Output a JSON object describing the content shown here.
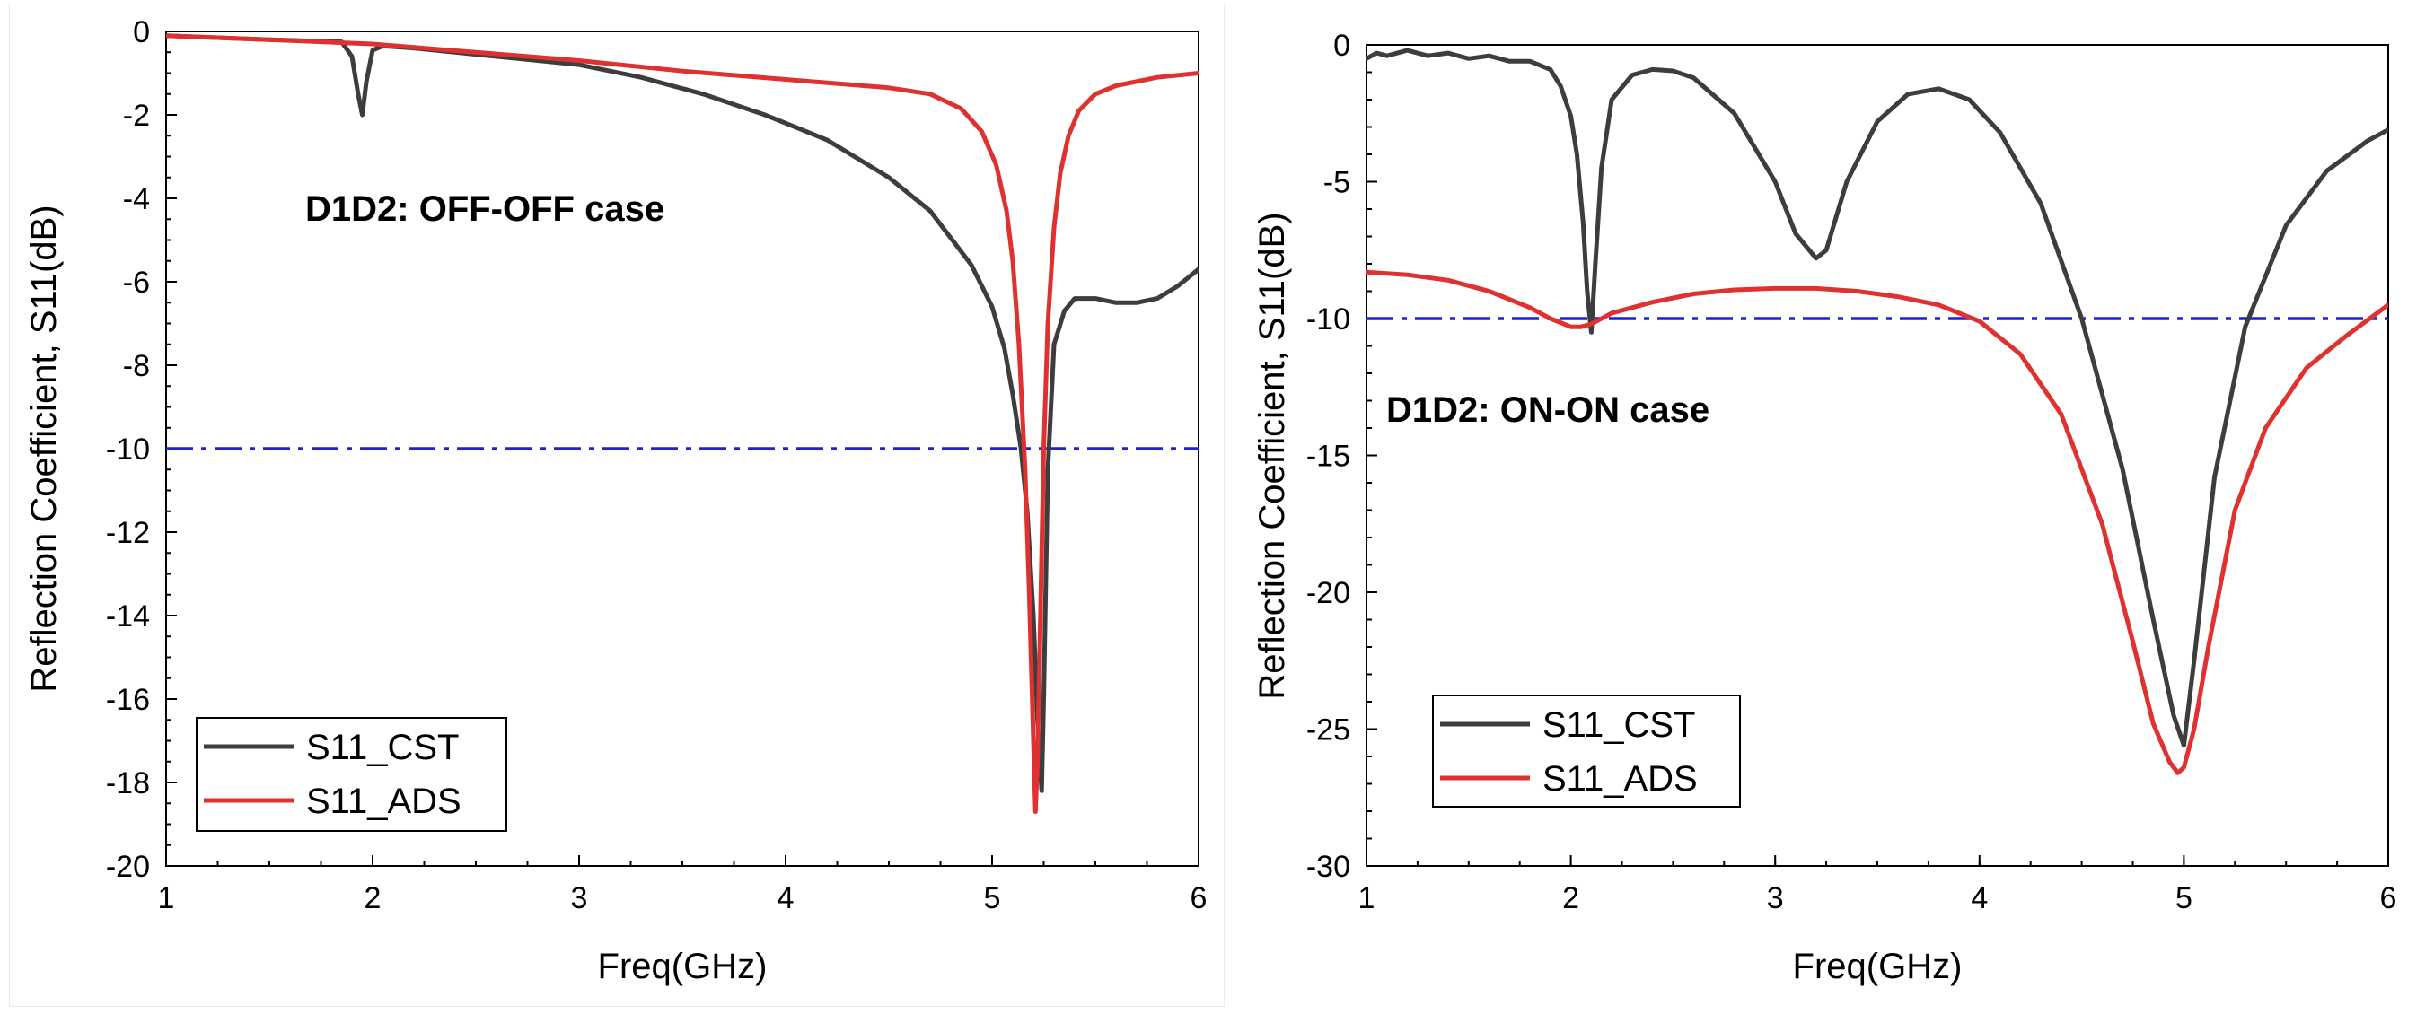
{
  "chart_data": [
    {
      "type": "line",
      "title": "",
      "annotation": "D1D2: OFF-OFF case",
      "xlabel": "Freq(GHz)",
      "ylabel": "Reflection Coefficient, S11(dB)",
      "xlim": [
        1,
        6
      ],
      "ylim": [
        -20,
        0
      ],
      "xticks": [
        1,
        2,
        3,
        4,
        5,
        6
      ],
      "yticks": [
        0,
        -2,
        -4,
        -6,
        -8,
        -10,
        -12,
        -14,
        -16,
        -18,
        -20
      ],
      "xtick_labels": [
        "1",
        "2",
        "3",
        "4",
        "5",
        "6"
      ],
      "ytick_labels": [
        "0",
        "-2",
        "-4",
        "-6",
        "-8",
        "-10",
        "-12",
        "-14",
        "-16",
        "-18",
        "-20"
      ],
      "legend_position": "bottom-left",
      "reference_line": {
        "y": -10,
        "style": "dash-dot",
        "color": "#1f1fd6"
      },
      "series": [
        {
          "name": "S11_CST",
          "color": "#3d3d3d",
          "x": [
            1,
            1.5,
            1.85,
            1.9,
            1.93,
            1.95,
            1.97,
            2.0,
            2.05,
            2.2,
            2.5,
            2.8,
            3.0,
            3.3,
            3.6,
            3.9,
            4.2,
            4.5,
            4.7,
            4.9,
            5.0,
            5.06,
            5.1,
            5.14,
            5.17,
            5.2,
            5.22,
            5.24,
            5.25,
            5.27,
            5.3,
            5.35,
            5.4,
            5.5,
            5.6,
            5.7,
            5.8,
            5.9,
            6.0
          ],
          "y": [
            -0.1,
            -0.2,
            -0.25,
            -0.6,
            -1.5,
            -2.0,
            -1.2,
            -0.45,
            -0.35,
            -0.4,
            -0.55,
            -0.7,
            -0.8,
            -1.1,
            -1.5,
            -2.0,
            -2.6,
            -3.5,
            -4.3,
            -5.6,
            -6.6,
            -7.6,
            -8.7,
            -10.0,
            -11.5,
            -14.0,
            -16.5,
            -18.2,
            -16.0,
            -10.5,
            -7.5,
            -6.7,
            -6.4,
            -6.4,
            -6.5,
            -6.5,
            -6.4,
            -6.1,
            -5.7
          ]
        },
        {
          "name": "S11_ADS",
          "color": "#e03131",
          "x": [
            1,
            1.5,
            2.0,
            2.5,
            3.0,
            3.5,
            4.0,
            4.5,
            4.7,
            4.85,
            4.95,
            5.02,
            5.07,
            5.1,
            5.13,
            5.16,
            5.18,
            5.2,
            5.21,
            5.22,
            5.23,
            5.25,
            5.27,
            5.3,
            5.33,
            5.37,
            5.42,
            5.5,
            5.6,
            5.8,
            6.0
          ],
          "y": [
            -0.1,
            -0.2,
            -0.3,
            -0.5,
            -0.7,
            -0.95,
            -1.15,
            -1.35,
            -1.5,
            -1.85,
            -2.4,
            -3.2,
            -4.3,
            -5.5,
            -7.5,
            -10.5,
            -13.5,
            -17.0,
            -18.7,
            -17.5,
            -15.0,
            -10.0,
            -7.0,
            -4.7,
            -3.4,
            -2.5,
            -1.9,
            -1.5,
            -1.3,
            -1.1,
            -1.0
          ]
        }
      ]
    },
    {
      "type": "line",
      "title": "",
      "annotation": "D1D2: ON-ON case",
      "xlabel": "Freq(GHz)",
      "ylabel": "Reflection Coefficient, S11(dB)",
      "xlim": [
        1,
        6
      ],
      "ylim": [
        -30,
        0
      ],
      "xticks": [
        1,
        2,
        3,
        4,
        5,
        6
      ],
      "yticks": [
        0,
        -5,
        -10,
        -15,
        -20,
        -25,
        -30
      ],
      "xtick_labels": [
        "1",
        "2",
        "3",
        "4",
        "5",
        "6"
      ],
      "ytick_labels": [
        "0",
        "-5",
        "-10",
        "-15",
        "-20",
        "-25",
        "-30"
      ],
      "legend_position": "bottom-left",
      "reference_line": {
        "y": -10,
        "style": "dash-dot",
        "color": "#1f1fd6"
      },
      "series": [
        {
          "name": "S11_CST",
          "color": "#3d3d3d",
          "x": [
            1,
            1.05,
            1.1,
            1.2,
            1.3,
            1.4,
            1.5,
            1.6,
            1.7,
            1.8,
            1.9,
            1.95,
            2.0,
            2.03,
            2.06,
            2.08,
            2.1,
            2.12,
            2.15,
            2.2,
            2.3,
            2.4,
            2.5,
            2.6,
            2.8,
            3.0,
            3.1,
            3.2,
            3.25,
            3.35,
            3.5,
            3.65,
            3.8,
            3.95,
            4.1,
            4.3,
            4.5,
            4.7,
            4.85,
            4.95,
            5.0,
            5.05,
            5.15,
            5.3,
            5.5,
            5.7,
            5.9,
            6.0
          ],
          "y": [
            -0.5,
            -0.3,
            -0.4,
            -0.2,
            -0.4,
            -0.3,
            -0.5,
            -0.4,
            -0.6,
            -0.6,
            -0.9,
            -1.5,
            -2.6,
            -4.0,
            -6.5,
            -9.0,
            -10.5,
            -8.0,
            -4.5,
            -2.0,
            -1.1,
            -0.9,
            -0.95,
            -1.2,
            -2.5,
            -5.0,
            -6.9,
            -7.8,
            -7.5,
            -5.0,
            -2.8,
            -1.8,
            -1.6,
            -2.0,
            -3.2,
            -5.8,
            -10.0,
            -15.5,
            -21.0,
            -24.5,
            -25.6,
            -22.5,
            -15.8,
            -10.3,
            -6.6,
            -4.6,
            -3.5,
            -3.1
          ]
        },
        {
          "name": "S11_ADS",
          "color": "#e03131",
          "x": [
            1,
            1.2,
            1.4,
            1.6,
            1.8,
            1.9,
            2.0,
            2.05,
            2.1,
            2.2,
            2.4,
            2.6,
            2.8,
            3.0,
            3.2,
            3.4,
            3.6,
            3.8,
            4.0,
            4.2,
            4.4,
            4.6,
            4.75,
            4.85,
            4.93,
            4.97,
            5.0,
            5.05,
            5.12,
            5.25,
            5.4,
            5.6,
            5.8,
            6.0
          ],
          "y": [
            -8.3,
            -8.4,
            -8.6,
            -9.0,
            -9.6,
            -10.0,
            -10.3,
            -10.3,
            -10.2,
            -9.8,
            -9.4,
            -9.1,
            -8.95,
            -8.9,
            -8.9,
            -9.0,
            -9.2,
            -9.5,
            -10.1,
            -11.3,
            -13.5,
            -17.5,
            -21.8,
            -24.8,
            -26.2,
            -26.6,
            -26.4,
            -25.0,
            -22.0,
            -17.0,
            -14.0,
            -11.8,
            -10.6,
            -9.5
          ]
        }
      ]
    }
  ]
}
